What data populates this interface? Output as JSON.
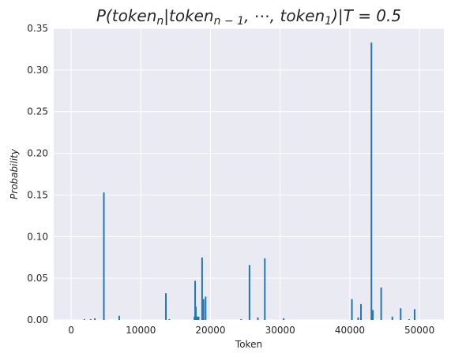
{
  "chart_data": {
    "type": "bar",
    "title": "P(token_n | token_{n-1}, ..., token_1) | T = 0.5",
    "title_parts": {
      "pre": "P(token",
      "sub1": "n",
      "mid1": "|token",
      "sub2": "n − 1",
      "mid2": ", ⋯, token",
      "sub3": "1",
      "post": ")|T = 0.5"
    },
    "xlabel": "Token",
    "ylabel": "Probability",
    "xlim": [
      -2500,
      53500
    ],
    "ylim": [
      0,
      0.35
    ],
    "xticks": [
      0,
      10000,
      20000,
      30000,
      40000,
      50000
    ],
    "xtick_labels": [
      "0",
      "10000",
      "20000",
      "30000",
      "40000",
      "50000"
    ],
    "yticks": [
      0,
      0.05,
      0.1,
      0.15,
      0.2,
      0.25,
      0.3,
      0.35
    ],
    "ytick_labels": [
      "0.00",
      "0.05",
      "0.10",
      "0.15",
      "0.20",
      "0.25",
      "0.30",
      "0.35"
    ],
    "grid": true,
    "bar_color": "#1f77b4",
    "background_color": "#eaeaf2",
    "series": [
      {
        "x": [
          1900,
          2800,
          3400,
          4700,
          6900,
          13600,
          14100,
          17700,
          17800,
          17900,
          18100,
          18300,
          18800,
          19000,
          19300,
          24400,
          25600,
          26800,
          27800,
          30500,
          40300,
          41200,
          41600,
          43100,
          43300,
          44500,
          46100,
          47300,
          48500,
          49300
        ],
        "values": [
          0.001,
          0.001,
          0.002,
          0.153,
          0.005,
          0.032,
          0.001,
          0.004,
          0.047,
          0.016,
          0.004,
          0.004,
          0.075,
          0.025,
          0.028,
          0.001,
          0.066,
          0.003,
          0.074,
          0.002,
          0.025,
          0.003,
          0.019,
          0.333,
          0.012,
          0.039,
          0.004,
          0.014,
          0.001,
          0.013
        ]
      }
    ]
  }
}
